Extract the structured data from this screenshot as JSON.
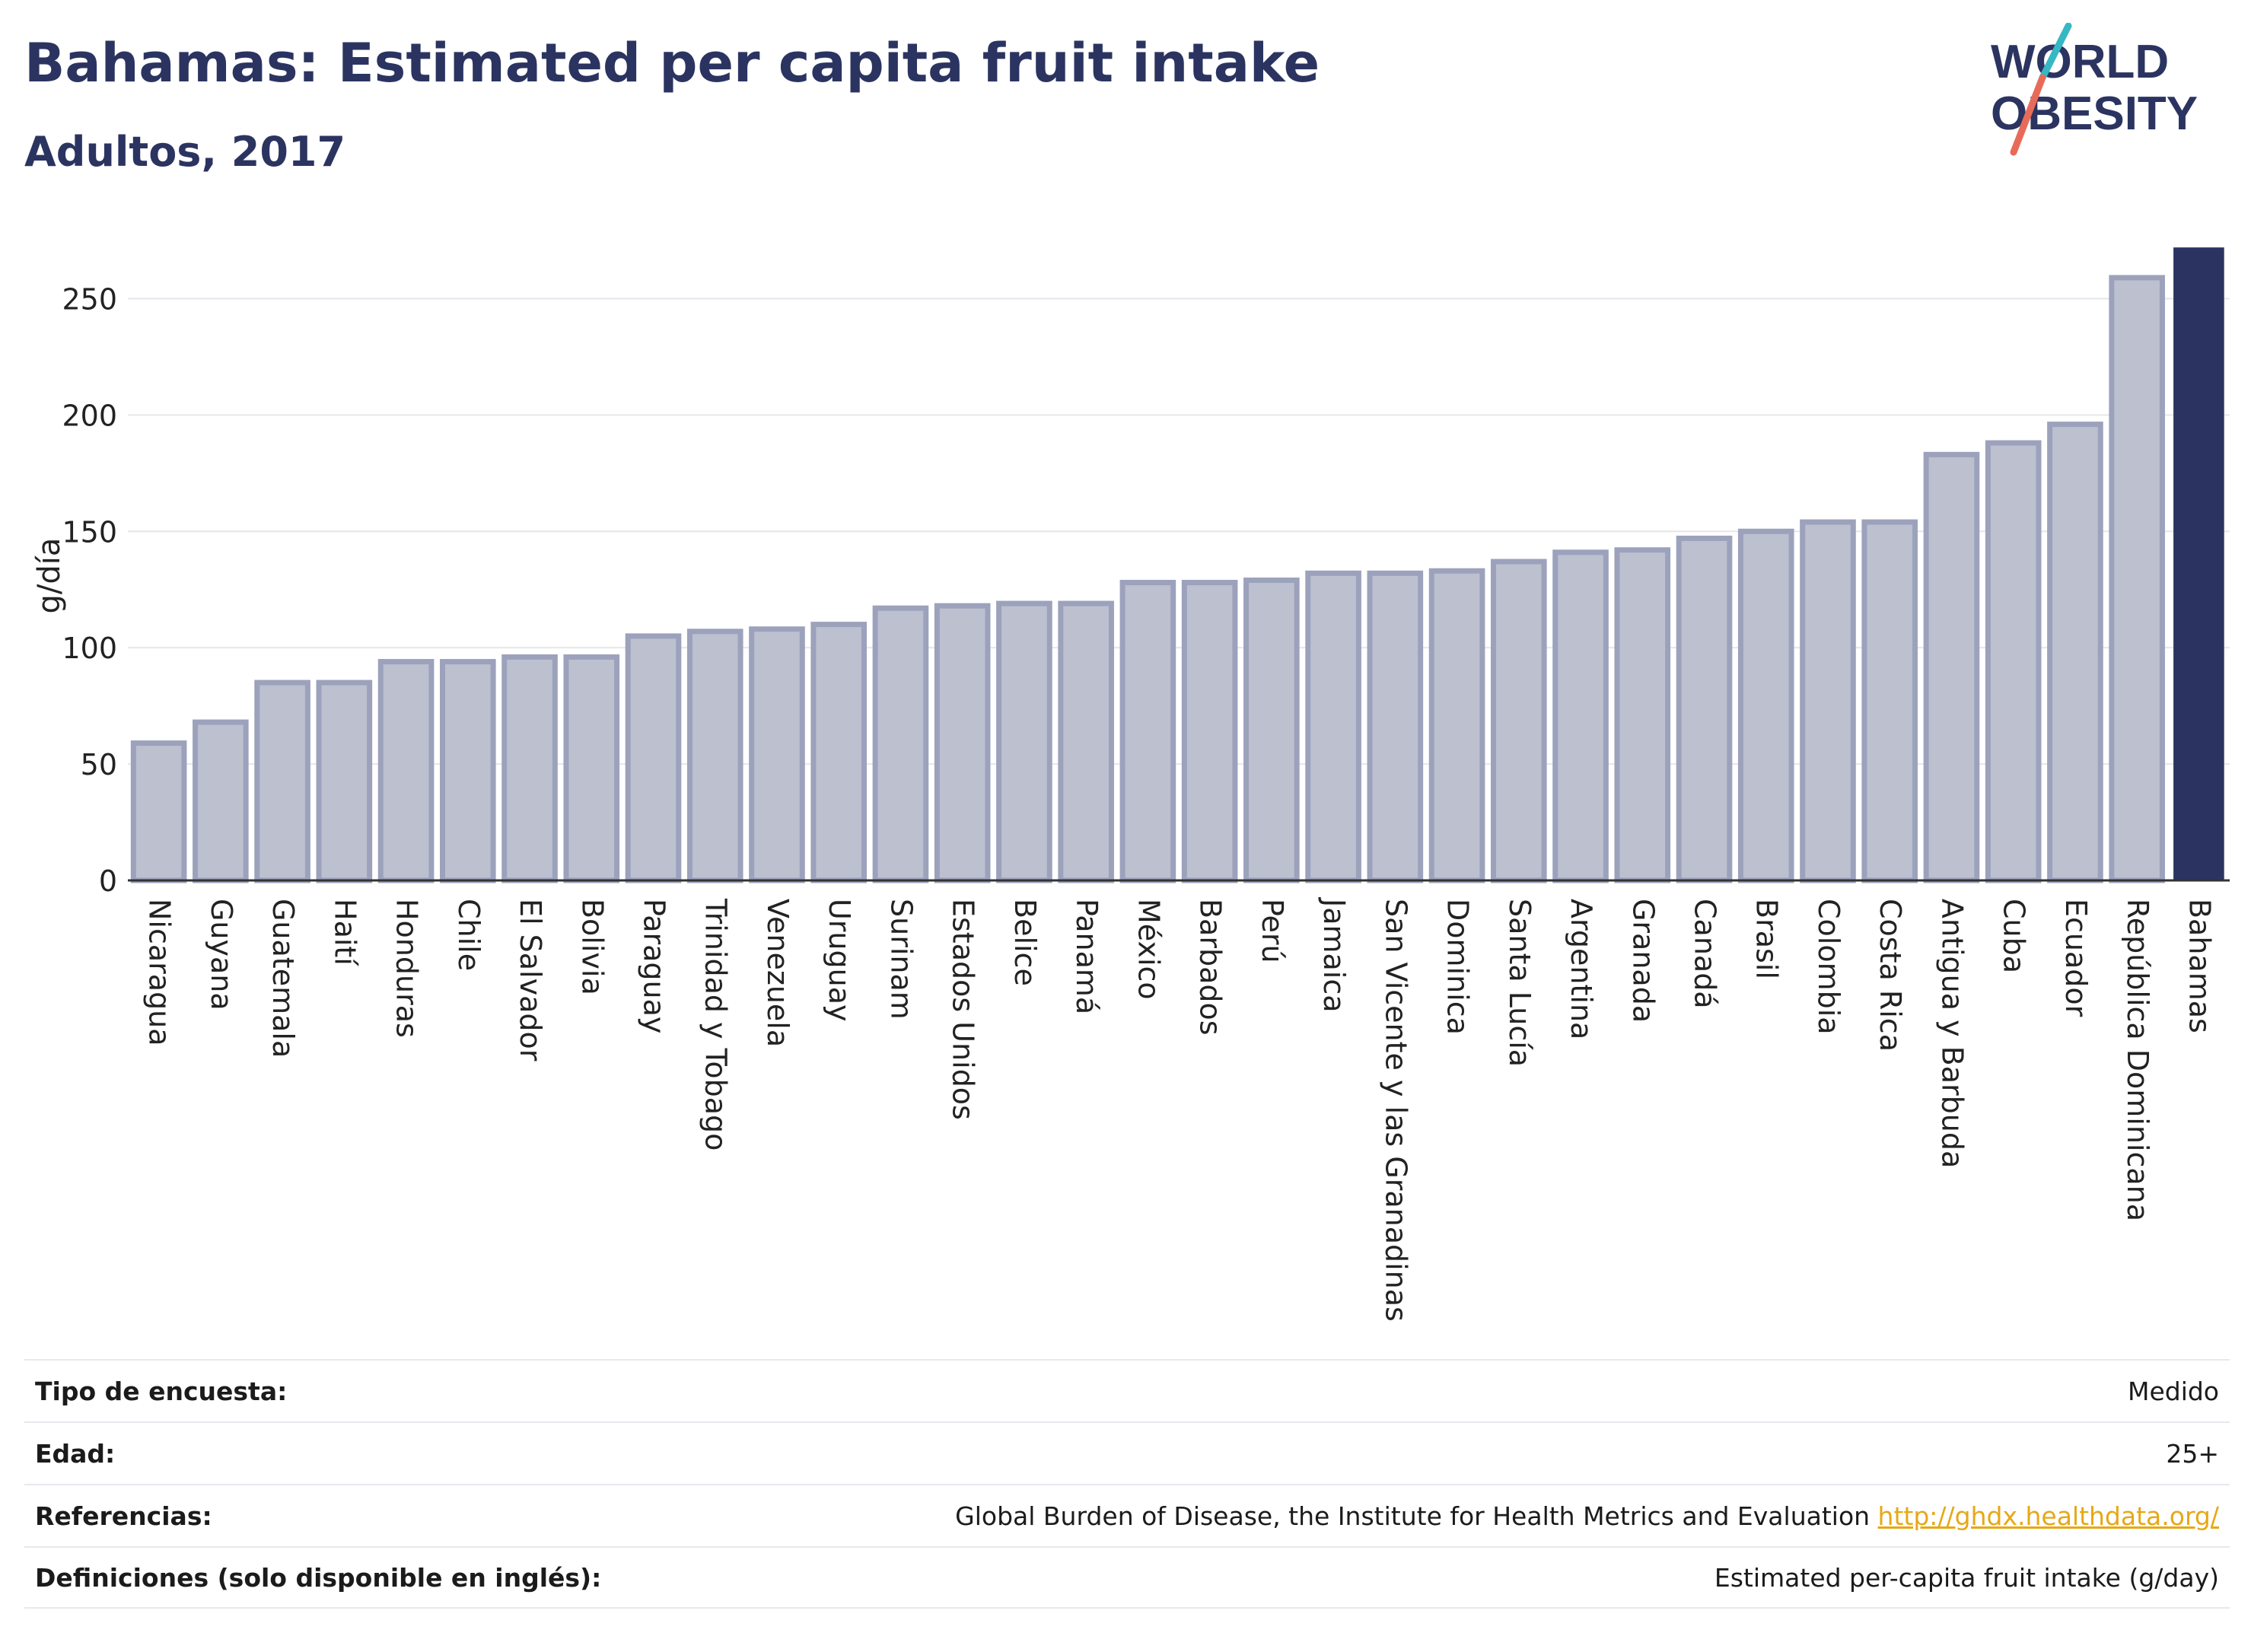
{
  "header": {
    "title": "Bahamas: Estimated per capita fruit intake",
    "subtitle": "Adultos, 2017"
  },
  "logo": {
    "line1": "WORLD",
    "line2": "OBESITY",
    "accent_teal": "#36b8c4",
    "accent_coral": "#e86b5a",
    "text_color": "#2b3460"
  },
  "colors": {
    "bar_default": "#bcc0cf",
    "bar_border": "#9ca2bc",
    "bar_highlight": "#2b3460",
    "grid": "#e6e6ec"
  },
  "chart_data": {
    "type": "bar",
    "ylabel": "g/día",
    "xlabel": "",
    "ylim": [
      0,
      275
    ],
    "yticks": [
      0,
      50,
      100,
      150,
      200,
      250
    ],
    "grid": true,
    "highlight": "Bahamas",
    "categories": [
      "Nicaragua",
      "Guyana",
      "Guatemala",
      "Haití",
      "Honduras",
      "Chile",
      "El Salvador",
      "Bolivia",
      "Paraguay",
      "Trinidad y Tobago",
      "Venezuela",
      "Uruguay",
      "Surinam",
      "Estados Unidos",
      "Belice",
      "Panamá",
      "México",
      "Barbados",
      "Perú",
      "Jamaica",
      "San Vicente y las Granadinas",
      "Dominica",
      "Santa Lucía",
      "Argentina",
      "Granada",
      "Canadá",
      "Brasil",
      "Colombia",
      "Costa Rica",
      "Antigua y Barbuda",
      "Cuba",
      "Ecuador",
      "República Dominicana",
      "Bahamas"
    ],
    "values": [
      59,
      68,
      85,
      85,
      94,
      94,
      96,
      96,
      105,
      107,
      108,
      110,
      117,
      118,
      119,
      119,
      128,
      128,
      129,
      132,
      132,
      133,
      137,
      141,
      142,
      147,
      150,
      154,
      154,
      183,
      188,
      196,
      259,
      272
    ]
  },
  "meta": [
    {
      "label": "Tipo de encuesta:",
      "value": "Medido",
      "link": ""
    },
    {
      "label": "Edad:",
      "value": "25+",
      "link": ""
    },
    {
      "label": "Referencias:",
      "value": "Global Burden of Disease, the Institute for Health Metrics and Evaluation",
      "link": "http://ghdx.healthdata.org/"
    },
    {
      "label": "Definiciones (solo disponible en inglés):",
      "value": "Estimated per-capita fruit intake (g/day)",
      "link": ""
    }
  ]
}
